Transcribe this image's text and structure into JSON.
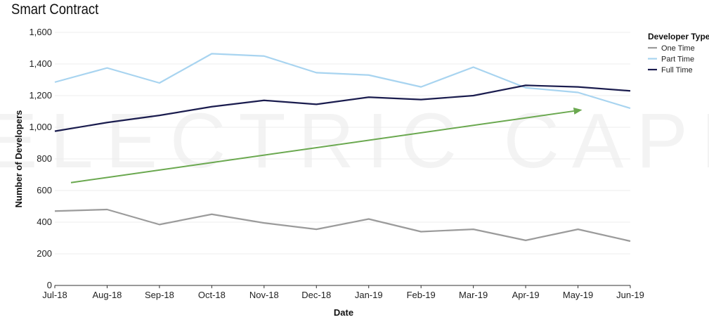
{
  "chart_data": {
    "type": "line",
    "title": "Smart Contract",
    "xlabel": "Date",
    "ylabel": "Number of Developers",
    "ylim": [
      0,
      1600
    ],
    "yticks": [
      0,
      200,
      400,
      600,
      800,
      1000,
      1200,
      1400,
      1600
    ],
    "ytick_labels": [
      "0",
      "200",
      "400",
      "600",
      "800",
      "1,000",
      "1,200",
      "1,400",
      "1,600"
    ],
    "categories": [
      "Jul-18",
      "Aug-18",
      "Sep-18",
      "Oct-18",
      "Nov-18",
      "Dec-18",
      "Jan-19",
      "Feb-19",
      "Mar-19",
      "Apr-19",
      "May-19",
      "Jun-19"
    ],
    "grid": true,
    "legend": {
      "title": "Developer Type",
      "position": "top-right"
    },
    "series": [
      {
        "name": "One Time",
        "color": "#9b9b9b",
        "values": [
          470,
          480,
          385,
          450,
          395,
          355,
          420,
          340,
          355,
          285,
          355,
          280
        ]
      },
      {
        "name": "Part Time",
        "color": "#a8d4f0",
        "values": [
          1285,
          1375,
          1280,
          1465,
          1450,
          1345,
          1330,
          1255,
          1380,
          1250,
          1220,
          1120
        ]
      },
      {
        "name": "Full Time",
        "color": "#1a1c4e",
        "values": [
          975,
          1030,
          1075,
          1130,
          1170,
          1145,
          1190,
          1175,
          1200,
          1265,
          1255,
          1230
        ]
      }
    ],
    "annotations": [
      {
        "type": "arrow",
        "color": "#6aa84f",
        "from": {
          "x": "Jul-18",
          "y": 650
        },
        "to": {
          "x": "May-19",
          "y": 1110
        }
      }
    ],
    "watermark": "ELECTRIC CAPITAL"
  }
}
